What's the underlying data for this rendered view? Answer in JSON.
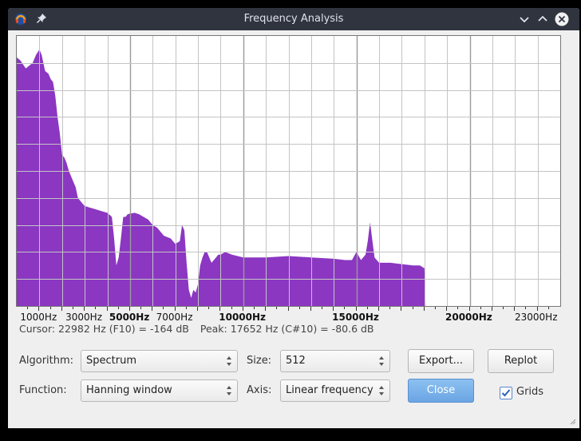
{
  "window": {
    "title": "Frequency Analysis"
  },
  "colors": {
    "spectrum": "#8b37c2",
    "titlebar": "#2f343f",
    "primary_button": "#7ab2eb"
  },
  "chart_data": {
    "type": "area",
    "xlabel": "",
    "ylabel": "",
    "xlim": [
      0,
      24000
    ],
    "ylim": [
      0,
      10
    ],
    "grid": true,
    "x_tick_labels": [
      {
        "value": 1000,
        "label": "1000Hz",
        "major": false
      },
      {
        "value": 3000,
        "label": "3000Hz",
        "major": false
      },
      {
        "value": 5000,
        "label": "5000Hz",
        "major": true
      },
      {
        "value": 7000,
        "label": "7000Hz",
        "major": false
      },
      {
        "value": 10000,
        "label": "10000Hz",
        "major": true
      },
      {
        "value": 15000,
        "label": "15000Hz",
        "major": true
      },
      {
        "value": 20000,
        "label": "20000Hz",
        "major": true
      },
      {
        "value": 23000,
        "label": "23000Hz",
        "major": false
      }
    ],
    "x": [
      0,
      150,
      400,
      700,
      850,
      1000,
      1100,
      1250,
      1400,
      1500,
      1600,
      1700,
      1800,
      1900,
      2000,
      2100,
      2200,
      2300,
      2400,
      2500,
      2600,
      2700,
      2800,
      2900,
      3000,
      3200,
      3400,
      3600,
      3800,
      4000,
      4200,
      4300,
      4400,
      4500,
      4600,
      4700,
      4800,
      4900,
      5000,
      5200,
      5400,
      5600,
      5800,
      6000,
      6200,
      6500,
      6800,
      7000,
      7200,
      7300,
      7400,
      7500,
      7600,
      7700,
      7800,
      7900,
      8000,
      8100,
      8200,
      8300,
      8400,
      8500,
      8600,
      8700,
      8800,
      8900,
      9000,
      9200,
      9500,
      10000,
      11000,
      12000,
      13000,
      14000,
      14500,
      14800,
      15000,
      15200,
      15400,
      15500,
      15600,
      15800,
      16000,
      16500,
      17000,
      17500,
      17800,
      18000,
      18050
    ],
    "y": [
      9.2,
      9.1,
      8.8,
      9.0,
      9.3,
      9.5,
      9.3,
      8.7,
      8.6,
      8.4,
      8.3,
      7.8,
      7.0,
      6.4,
      5.6,
      5.5,
      5.3,
      5.0,
      4.8,
      4.6,
      4.4,
      4.0,
      3.9,
      3.8,
      3.7,
      3.65,
      3.6,
      3.55,
      3.5,
      3.45,
      3.3,
      2.5,
      1.5,
      1.8,
      2.5,
      3.3,
      3.3,
      3.4,
      3.42,
      3.45,
      3.4,
      3.3,
      3.2,
      3.0,
      2.9,
      2.6,
      2.5,
      2.3,
      2.4,
      3.0,
      2.8,
      1.6,
      0.6,
      0.3,
      0.6,
      0.5,
      0.8,
      1.5,
      1.8,
      2.0,
      2.0,
      1.8,
      1.6,
      1.7,
      1.8,
      1.9,
      1.9,
      2.0,
      1.9,
      1.8,
      1.8,
      1.85,
      1.8,
      1.75,
      1.7,
      1.7,
      2.0,
      1.7,
      1.9,
      2.4,
      3.1,
      1.8,
      1.6,
      1.6,
      1.55,
      1.5,
      1.5,
      1.4,
      0
    ],
    "cursor_readout": "Cursor: 22982 Hz (F10) = -164 dB",
    "peak_readout": "Peak: 17652 Hz (C#10) = -80.6 dB"
  },
  "controls": {
    "algorithm_label": "Algorithm:",
    "algorithm_value": "Spectrum",
    "function_label": "Function:",
    "function_value": "Hanning window",
    "size_label": "Size:",
    "size_value": "512",
    "axis_label": "Axis:",
    "axis_value": "Linear frequency",
    "export_label": "Export...",
    "replot_label": "Replot",
    "close_label": "Close",
    "grids_label": "Grids",
    "grids_checked": true
  }
}
